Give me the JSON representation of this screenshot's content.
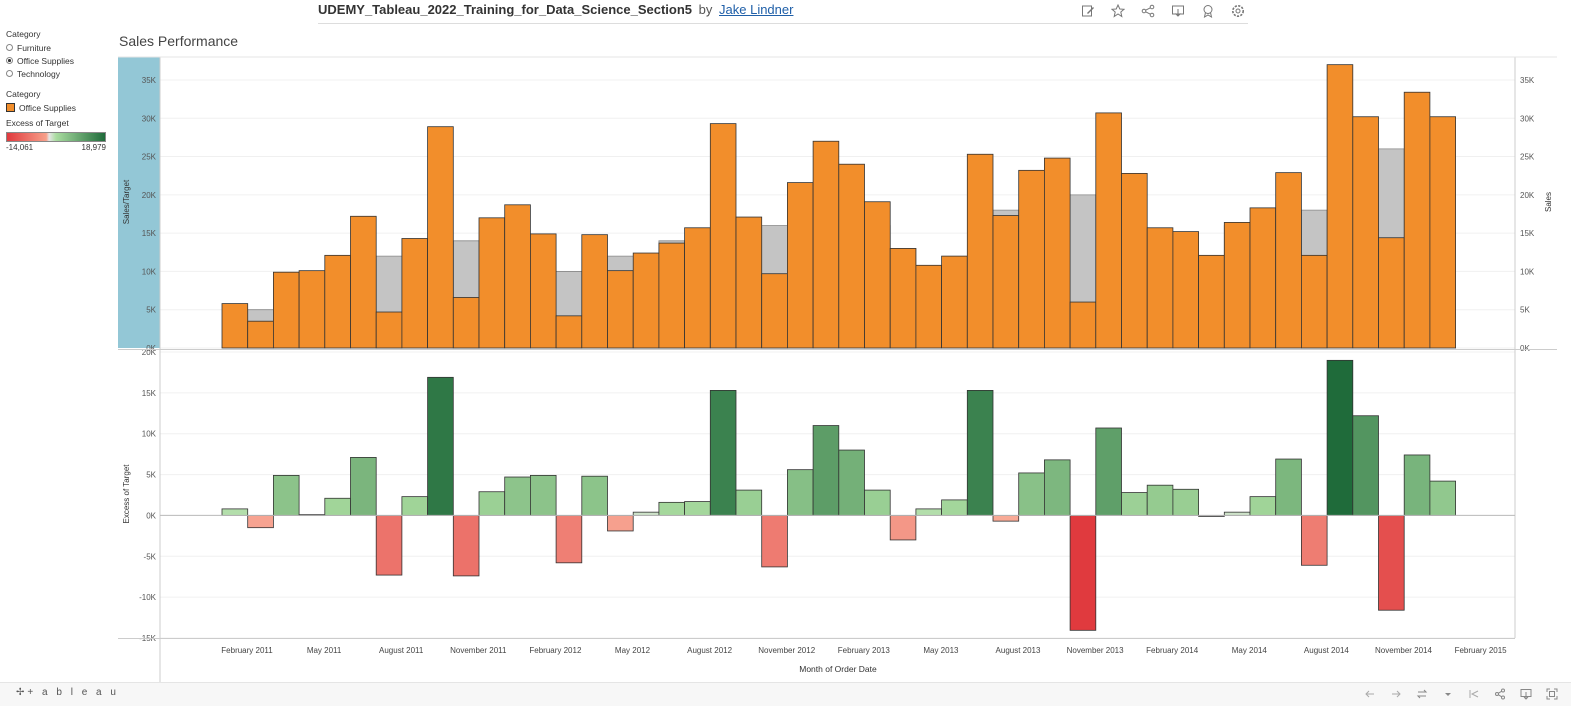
{
  "header": {
    "workbook_title": "UDEMY_Tableau_2022_Training_for_Data_Science_Section5",
    "by_text": "by",
    "author": "Jake Lindner",
    "toolbar_icons": [
      "edit-icon",
      "star-icon",
      "share-icon",
      "download-icon",
      "badge-icon",
      "settings-icon"
    ]
  },
  "filters": {
    "category_filter_title": "Category",
    "options": [
      {
        "label": "Furniture",
        "selected": false
      },
      {
        "label": "Office Supplies",
        "selected": true
      },
      {
        "label": "Technology",
        "selected": false
      }
    ],
    "category_legend_title": "Category",
    "category_legend_item": "Office Supplies",
    "excess_legend_title": "Excess of Target",
    "excess_min": "-14,061",
    "excess_max": "18,979"
  },
  "sheet_title": "Sales Performance",
  "footer": {
    "logo_text": "+ a b l e a u"
  },
  "colors": {
    "sales_bar": "#f28e2b",
    "target_area": "#c4c4c4",
    "sales_target_axis_band": "#93c7d6",
    "negative": "#e03a3e",
    "positive": "#1f6b3a"
  },
  "chart_data": [
    {
      "type": "bar",
      "name_hint": "top-pane",
      "ylabel_left": "Sales/Target",
      "ylabel_right": "Sales",
      "ylim": [
        0,
        38000
      ],
      "yticks": [
        "0K",
        "5K",
        "10K",
        "15K",
        "20K",
        "25K",
        "30K",
        "35K"
      ],
      "series": [
        {
          "name": "Sales",
          "values": [
            5800,
            3500,
            9900,
            10100,
            12100,
            17200,
            4700,
            14300,
            28900,
            6600,
            17000,
            18700,
            14900,
            4200,
            14800,
            10100,
            12400,
            13700,
            15700,
            29300,
            17100,
            9700,
            21600,
            27000,
            24000,
            19100,
            13000,
            10800,
            12000,
            25300,
            17300,
            23200,
            24800,
            6000,
            30700,
            22800,
            15700,
            15200,
            12100,
            16400,
            18300,
            22900,
            12100,
            37000,
            30200,
            14400,
            33400,
            30200
          ]
        },
        {
          "name": "Target",
          "values": [
            null,
            5000,
            null,
            null,
            null,
            null,
            12000,
            null,
            null,
            14000,
            null,
            null,
            null,
            10000,
            null,
            12000,
            12000,
            14000,
            null,
            null,
            null,
            16000,
            null,
            null,
            null,
            16000,
            13000,
            null,
            null,
            null,
            18000,
            null,
            null,
            20000,
            null,
            null,
            null,
            null,
            12000,
            16000,
            null,
            null,
            18000,
            null,
            null,
            26000,
            null,
            null
          ]
        }
      ]
    },
    {
      "type": "bar",
      "name_hint": "bottom-pane",
      "ylabel": "Excess of Target",
      "xlabel": "Month of Order Date",
      "ylim": [
        -15000,
        20000
      ],
      "yticks": [
        "-15K",
        "-10K",
        "-5K",
        "0K",
        "5K",
        "10K",
        "15K",
        "20K"
      ],
      "xticks": [
        "February 2011",
        "May 2011",
        "August 2011",
        "November 2011",
        "February 2012",
        "May 2012",
        "August 2012",
        "November 2012",
        "February 2013",
        "May 2013",
        "August 2013",
        "November 2013",
        "February 2014",
        "May 2014",
        "August 2014",
        "November 2014",
        "February 2015"
      ],
      "series": [
        {
          "name": "Excess of Target",
          "values": [
            800,
            -1500,
            4900,
            100,
            2100,
            7100,
            -7300,
            2300,
            16900,
            -7400,
            2900,
            4700,
            4900,
            -5800,
            4800,
            -1900,
            400,
            1600,
            1700,
            15300,
            3100,
            -6300,
            5600,
            11000,
            8000,
            3100,
            -3000,
            800,
            1900,
            15300,
            -700,
            5200,
            6800,
            -14061,
            10700,
            2800,
            3700,
            3200,
            -100,
            400,
            2300,
            6900,
            -6100,
            18979,
            12200,
            -11600,
            7400,
            4200
          ]
        }
      ],
      "color_range": [
        -14061,
        18979
      ]
    }
  ]
}
